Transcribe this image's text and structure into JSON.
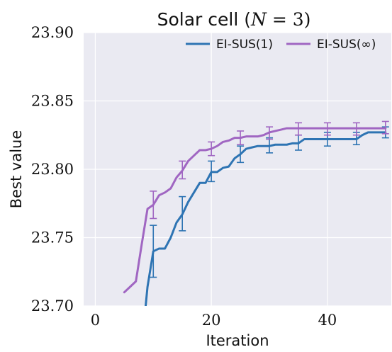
{
  "chart_data": {
    "type": "line",
    "title": "Solar cell (N = 3)",
    "title_parts": {
      "prefix": "Solar cell (",
      "var": "N",
      "rest": " = 3)"
    },
    "xlabel": "Iteration",
    "ylabel": "Best value",
    "xlim": [
      -2,
      51
    ],
    "ylim": [
      23.7,
      23.9
    ],
    "xticks": [
      0,
      20,
      40
    ],
    "xtick_labels": [
      "0",
      "20",
      "40"
    ],
    "yticks": [
      23.7,
      23.75,
      23.8,
      23.85,
      23.9
    ],
    "ytick_labels": [
      "23.70",
      "23.75",
      "23.80",
      "23.85",
      "23.90"
    ],
    "grid": true,
    "legend_position": "top-right",
    "series": [
      {
        "name": "EI-SUS(1)",
        "color": "#2e74b3",
        "x": [
          8,
          9,
          10,
          11,
          12,
          13,
          14,
          15,
          16,
          17,
          18,
          19,
          20,
          21,
          22,
          23,
          24,
          25,
          26,
          27,
          28,
          29,
          30,
          31,
          32,
          33,
          34,
          35,
          36,
          37,
          38,
          39,
          40,
          41,
          42,
          43,
          44,
          45,
          46,
          47,
          48,
          49,
          50
        ],
        "y": [
          23.67,
          23.714,
          23.74,
          23.742,
          23.742,
          23.75,
          23.761,
          23.767,
          23.776,
          23.783,
          23.79,
          23.79,
          23.798,
          23.798,
          23.801,
          23.802,
          23.808,
          23.811,
          23.815,
          23.816,
          23.817,
          23.817,
          23.817,
          23.818,
          23.818,
          23.818,
          23.819,
          23.819,
          23.822,
          23.822,
          23.822,
          23.822,
          23.822,
          23.822,
          23.822,
          23.822,
          23.822,
          23.822,
          23.825,
          23.827,
          23.827,
          23.827,
          23.827
        ],
        "errorbars": [
          {
            "x": 10,
            "low": 23.721,
            "high": 23.759
          },
          {
            "x": 15,
            "low": 23.755,
            "high": 23.78
          },
          {
            "x": 20,
            "low": 23.791,
            "high": 23.806
          },
          {
            "x": 25,
            "low": 23.805,
            "high": 23.817
          },
          {
            "x": 30,
            "low": 23.812,
            "high": 23.823
          },
          {
            "x": 35,
            "low": 23.814,
            "high": 23.825
          },
          {
            "x": 40,
            "low": 23.817,
            "high": 23.827
          },
          {
            "x": 45,
            "low": 23.818,
            "high": 23.827
          },
          {
            "x": 50,
            "low": 23.823,
            "high": 23.831
          }
        ]
      },
      {
        "name": "EI-SUS(∞)",
        "color": "#a066c2",
        "x": [
          5,
          6,
          7,
          8,
          9,
          10,
          11,
          12,
          13,
          14,
          15,
          16,
          17,
          18,
          19,
          20,
          21,
          22,
          23,
          24,
          25,
          26,
          27,
          28,
          29,
          30,
          31,
          32,
          33,
          34,
          35,
          36,
          37,
          38,
          39,
          40,
          41,
          42,
          43,
          44,
          45,
          46,
          47,
          48,
          49,
          50
        ],
        "y": [
          23.71,
          23.714,
          23.718,
          23.745,
          23.771,
          23.774,
          23.781,
          23.783,
          23.786,
          23.794,
          23.799,
          23.806,
          23.81,
          23.814,
          23.814,
          23.815,
          23.817,
          23.82,
          23.821,
          23.823,
          23.823,
          23.824,
          23.824,
          23.824,
          23.825,
          23.827,
          23.828,
          23.829,
          23.83,
          23.83,
          23.83,
          23.83,
          23.83,
          23.83,
          23.83,
          23.83,
          23.83,
          23.83,
          23.83,
          23.83,
          23.83,
          23.83,
          23.83,
          23.83,
          23.83,
          23.83
        ],
        "errorbars": [
          {
            "x": 10,
            "low": 23.764,
            "high": 23.784
          },
          {
            "x": 15,
            "low": 23.793,
            "high": 23.806
          },
          {
            "x": 20,
            "low": 23.81,
            "high": 23.82
          },
          {
            "x": 25,
            "low": 23.818,
            "high": 23.828
          },
          {
            "x": 30,
            "low": 23.822,
            "high": 23.831
          },
          {
            "x": 35,
            "low": 23.825,
            "high": 23.834
          },
          {
            "x": 40,
            "low": 23.825,
            "high": 23.834
          },
          {
            "x": 45,
            "low": 23.825,
            "high": 23.834
          },
          {
            "x": 50,
            "low": 23.826,
            "high": 23.835
          }
        ]
      }
    ]
  }
}
